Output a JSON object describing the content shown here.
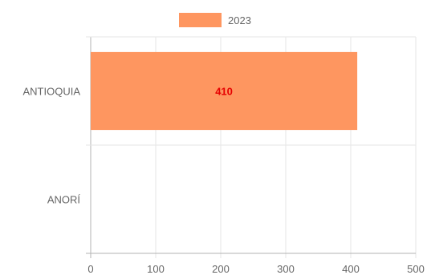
{
  "colors": {
    "series": "#fe9660",
    "data_label": "#e60000",
    "grid": "#e5e5e5",
    "axis": "#b3b3b3",
    "text": "#666666"
  },
  "chart_data": {
    "type": "bar",
    "orientation": "horizontal",
    "categories": [
      "ANTIOQUIA",
      "ANORÍ"
    ],
    "series": [
      {
        "name": "2023",
        "values": [
          410,
          null
        ]
      }
    ],
    "data_labels": [
      "410",
      ""
    ],
    "xlim": [
      0,
      500
    ],
    "xticks": [
      0,
      100,
      200,
      300,
      400,
      500
    ],
    "xtick_labels": [
      "0",
      "100",
      "200",
      "300",
      "400",
      "500"
    ],
    "legend": {
      "placement": "top-center",
      "entries": [
        "2023"
      ]
    },
    "grid": true
  }
}
